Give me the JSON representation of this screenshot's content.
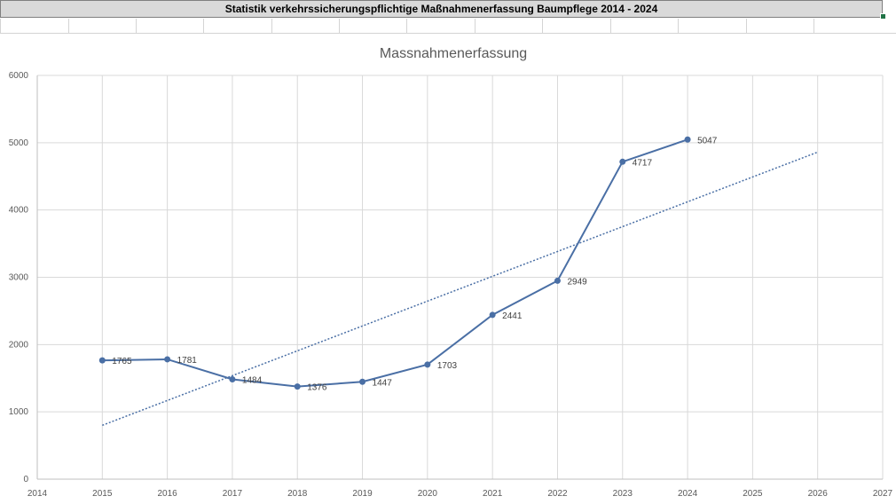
{
  "sheet": {
    "title": "Statistik verkehrssicherungspflichtige Maßnahmenerfassung Baumpflege 2014 - 2024"
  },
  "colors": {
    "series": "#4a6fa5",
    "trendline": "#4a6fa5",
    "grid": "#d9d9d9",
    "header_bg": "#d9d9d9",
    "selection": "#217346"
  },
  "chart_data": {
    "type": "scatter",
    "title": "Massnahmenerfassung",
    "xlabel": "",
    "ylabel": "",
    "xlim": [
      2014,
      2027
    ],
    "ylim": [
      0,
      6000
    ],
    "x_ticks": [
      2014,
      2015,
      2016,
      2017,
      2018,
      2019,
      2020,
      2021,
      2022,
      2023,
      2024,
      2025,
      2026,
      2027
    ],
    "y_ticks": [
      0,
      1000,
      2000,
      3000,
      4000,
      5000,
      6000
    ],
    "grid": true,
    "legend": "none",
    "series": [
      {
        "x": [
          2015,
          2016,
          2017,
          2018,
          2019,
          2020,
          2021,
          2022,
          2023,
          2024
        ],
        "y": [
          1765,
          1781,
          1484,
          1376,
          1447,
          1703,
          2441,
          2949,
          4717,
          5047
        ],
        "labels": [
          "1765",
          "1781",
          "1484",
          "1376",
          "1447",
          "1703",
          "2441",
          "2949",
          "4717",
          "5047"
        ],
        "style": "line-markers"
      }
    ],
    "trendline": {
      "type": "linear",
      "style": "dotted",
      "x": [
        2015,
        2026
      ],
      "y": [
        800,
        4860
      ]
    }
  }
}
